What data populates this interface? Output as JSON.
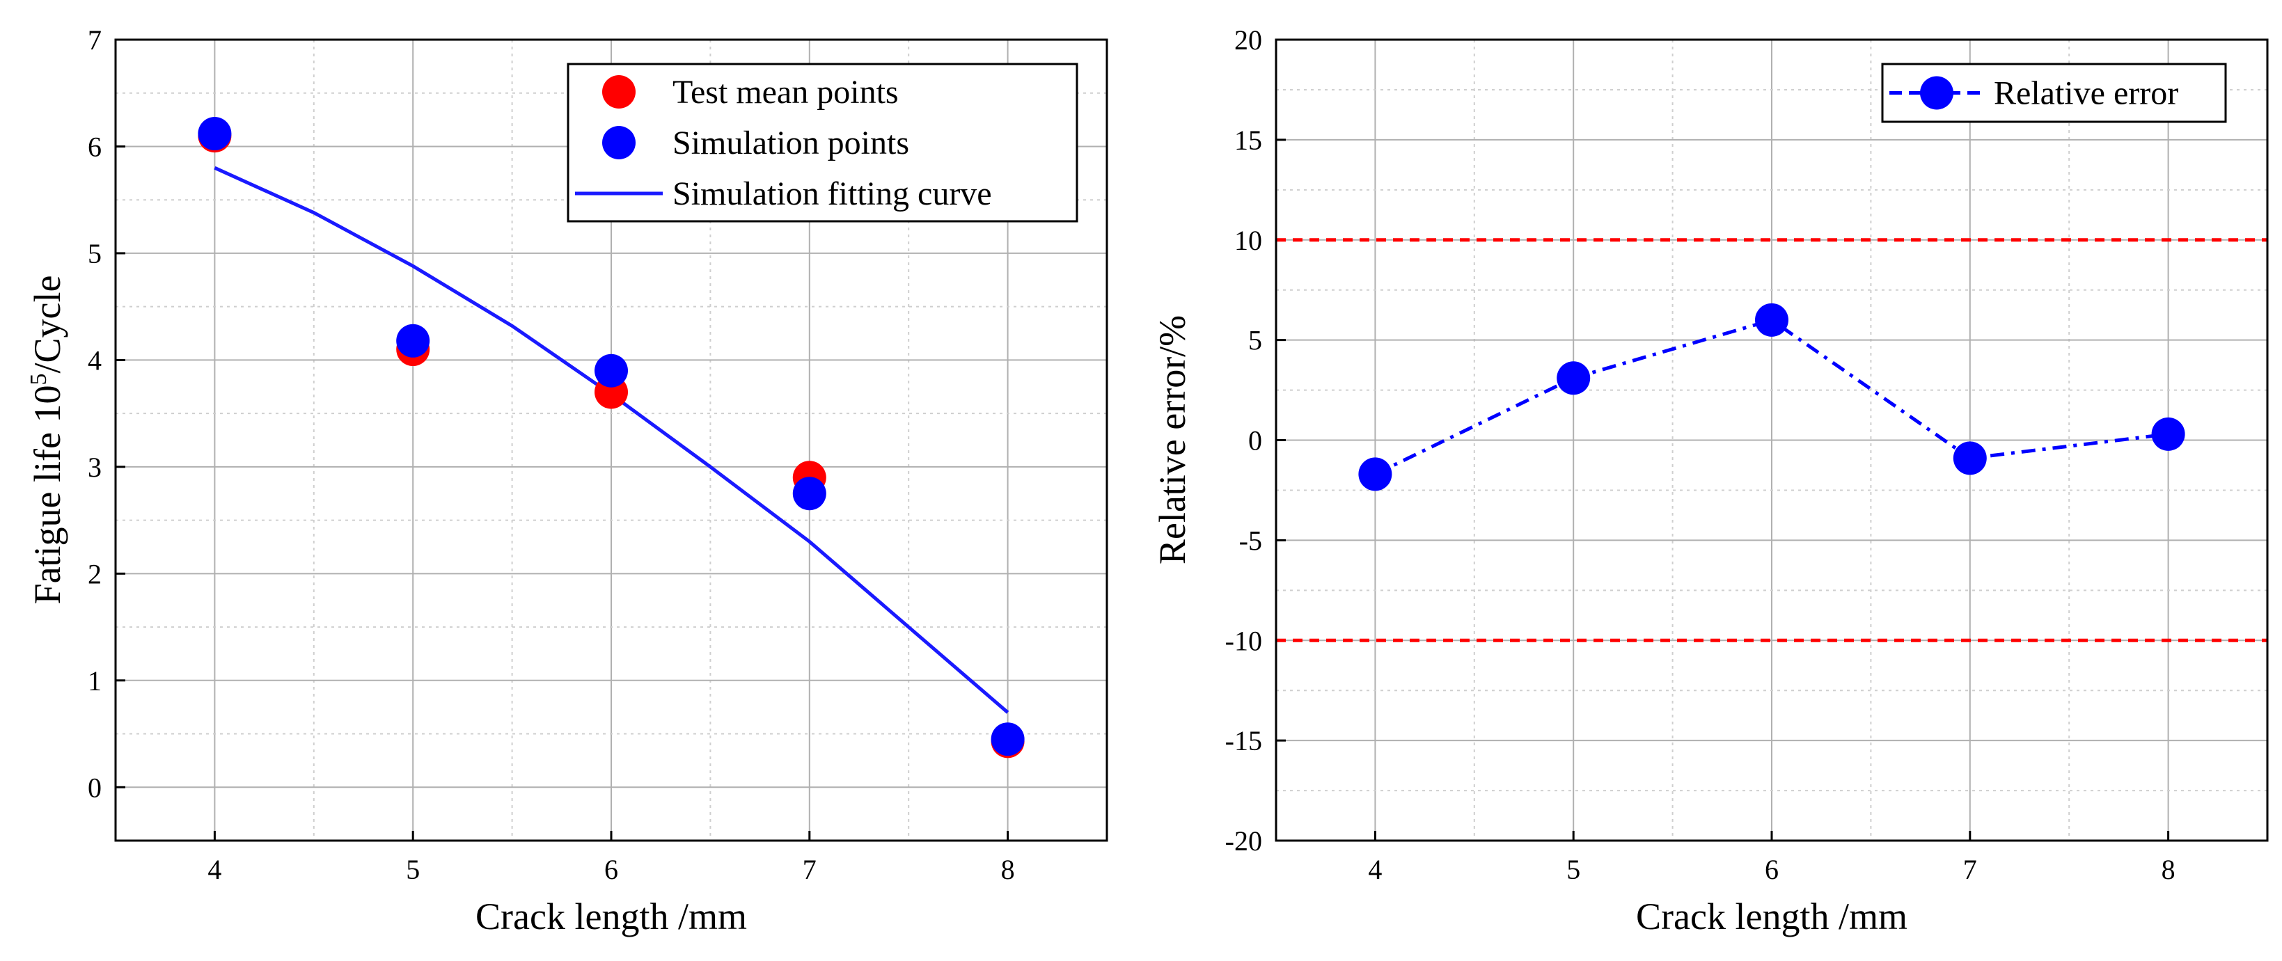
{
  "chart_data": [
    {
      "type": "scatter",
      "xlabel": "Crack length /mm",
      "ylabel": "Fatigue life 10",
      "ylabel_sup": "5",
      "ylabel_suffix": "/Cycle",
      "xlim": [
        3.5,
        8.5
      ],
      "ylim": [
        -0.5,
        7
      ],
      "xticks": [
        "4",
        "5",
        "6",
        "7",
        "8"
      ],
      "yticks": [
        "0",
        "1",
        "2",
        "3",
        "4",
        "5",
        "6",
        "7"
      ],
      "grid": true,
      "legend_position": "top-right",
      "series": [
        {
          "name": "Test mean points",
          "kind": "scatter",
          "color": "#ff0000",
          "x": [
            4,
            5,
            6,
            7,
            8
          ],
          "y": [
            6.1,
            4.1,
            3.7,
            2.9,
            0.43
          ]
        },
        {
          "name": "Simulation points",
          "kind": "scatter",
          "color": "#0000ff",
          "x": [
            4,
            5,
            6,
            7,
            8
          ],
          "y": [
            6.12,
            4.18,
            3.9,
            2.75,
            0.45
          ]
        },
        {
          "name": "Simulation fitting curve",
          "kind": "line",
          "color": "#1a1aff",
          "x": [
            4,
            4.5,
            5,
            5.5,
            6,
            6.5,
            7,
            7.5,
            8
          ],
          "y": [
            5.8,
            5.38,
            4.88,
            4.32,
            3.68,
            3.0,
            2.3,
            1.5,
            0.7
          ]
        }
      ]
    },
    {
      "type": "line",
      "xlabel": "Crack length /mm",
      "ylabel": "Relative error/%",
      "xlim": [
        3.5,
        8.5
      ],
      "ylim": [
        -20,
        20
      ],
      "xticks": [
        "4",
        "5",
        "6",
        "7",
        "8"
      ],
      "yticks": [
        "-20",
        "-15",
        "-10",
        "-5",
        "0",
        "5",
        "10",
        "15",
        "20"
      ],
      "grid": true,
      "legend_position": "top-right",
      "reference_lines": [
        {
          "y": 10,
          "color": "#ff0000",
          "style": "dashed"
        },
        {
          "y": -10,
          "color": "#ff0000",
          "style": "dashed"
        }
      ],
      "series": [
        {
          "name": "Relative error",
          "kind": "line-marker",
          "color": "#0000ff",
          "style": "dash-dot",
          "x": [
            4,
            5,
            6,
            7,
            8
          ],
          "y": [
            -1.7,
            3.1,
            6.0,
            -0.9,
            0.3
          ]
        }
      ]
    }
  ]
}
